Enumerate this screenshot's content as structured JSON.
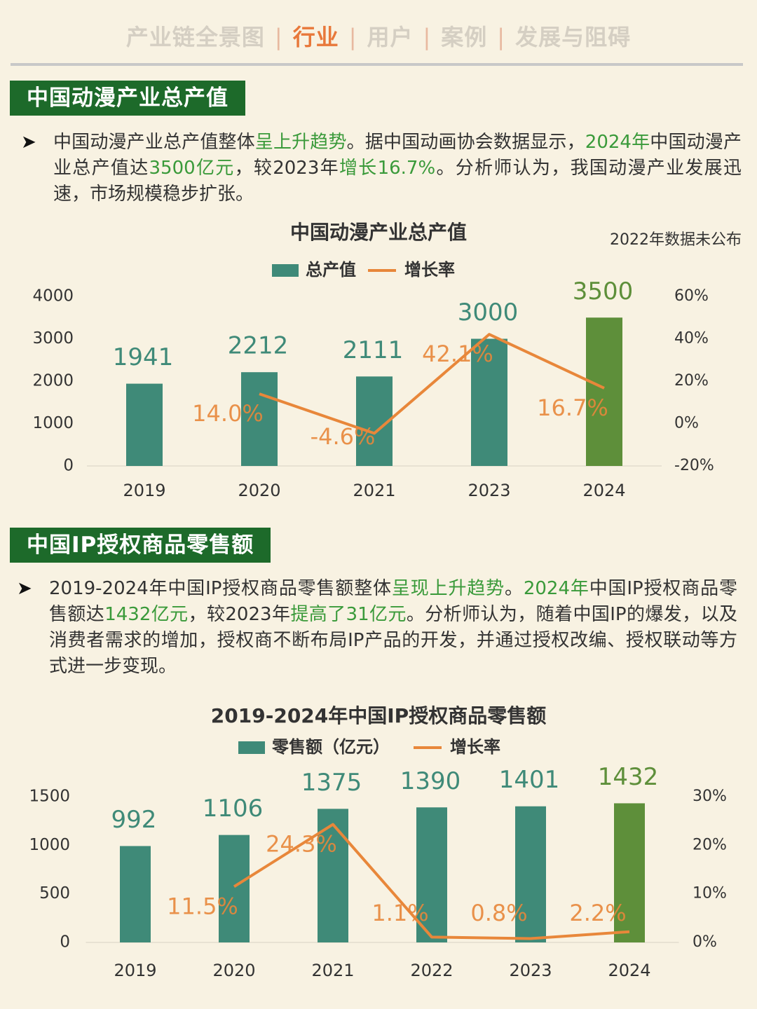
{
  "nav": [
    "产业链全景图",
    "行业",
    "用户",
    "案例",
    "发展与阻碍"
  ],
  "nav_active": 1,
  "sections": [
    {
      "heading": "中国动漫产业总产值",
      "text": [
        {
          "text": "中国动漫产业总产值整体",
          "highlight": false
        },
        {
          "text": "呈上升趋势",
          "highlight": true
        },
        {
          "text": "。据中国动画协会数据显示，",
          "highlight": false
        },
        {
          "text": "2024年",
          "highlight": true
        },
        {
          "text": "中国动漫产业总产值达",
          "highlight": false
        },
        {
          "text": "3500亿元",
          "highlight": true
        },
        {
          "text": "，较2023年",
          "highlight": false
        },
        {
          "text": "增长16.7%",
          "highlight": true
        },
        {
          "text": "。分析师认为，我国动漫产业发展迅速，市场规模稳步扩张。",
          "highlight": false
        }
      ]
    },
    {
      "heading": "中国IP授权商品零售额",
      "text": [
        {
          "text": "2019-2024年中国IP授权商品零售额整体",
          "highlight": false
        },
        {
          "text": "呈现上升趋势",
          "highlight": true
        },
        {
          "text": "。",
          "highlight": false
        },
        {
          "text": "2024年",
          "highlight": true
        },
        {
          "text": "中国IP授权商品零售额达",
          "highlight": false
        },
        {
          "text": "1432亿元",
          "highlight": true
        },
        {
          "text": "，较2023年",
          "highlight": false
        },
        {
          "text": "提高了31亿元",
          "highlight": true
        },
        {
          "text": "。分析师认为，随着中国IP的爆发，以及消费者需求的增加，授权商不断布局IP产品的开发，并通过授权改编、授权联动等方式进一步变现。",
          "highlight": false
        }
      ]
    }
  ],
  "chart_data": [
    {
      "type": "bar",
      "title": "中国动漫产业总产值",
      "note": "2022年数据未公布",
      "categories": [
        "2019",
        "2020",
        "2021",
        "2023",
        "2024"
      ],
      "series": [
        {
          "name": "总产值",
          "type": "bar",
          "color": "#3f8a78",
          "colors": [
            "#3f8a78",
            "#3f8a78",
            "#3f8a78",
            "#3f8a78",
            "#5e8f3a"
          ],
          "values": [
            1941,
            2212,
            2111,
            3000,
            3500
          ]
        },
        {
          "name": "增长率",
          "type": "line",
          "axis": "y2",
          "color": "#e8873a",
          "values": [
            null,
            14.0,
            -4.6,
            42.1,
            16.7
          ],
          "value_labels": [
            null,
            "14.0%",
            "-4.6%",
            "42.1%",
            "16.7%"
          ]
        }
      ],
      "ylim": [
        0,
        4000
      ],
      "yticks": [
        0,
        1000,
        2000,
        3000,
        4000
      ],
      "y2lim": [
        -20,
        60
      ],
      "y2ticks": [
        {
          "value": -20,
          "label": "-20%"
        },
        {
          "value": 0,
          "label": "0%"
        },
        {
          "value": 20,
          "label": "20%"
        },
        {
          "value": 40,
          "label": "40%"
        },
        {
          "value": 60,
          "label": "60%"
        }
      ]
    },
    {
      "type": "bar",
      "title": "2019-2024年中国IP授权商品零售额",
      "categories": [
        "2019",
        "2020",
        "2021",
        "2022",
        "2023",
        "2024"
      ],
      "series": [
        {
          "name": "零售额（亿元）",
          "type": "bar",
          "color": "#3f8a78",
          "colors": [
            "#3f8a78",
            "#3f8a78",
            "#3f8a78",
            "#3f8a78",
            "#3f8a78",
            "#5e8f3a"
          ],
          "values": [
            992,
            1106,
            1375,
            1390,
            1401,
            1432
          ]
        },
        {
          "name": "增长率",
          "type": "line",
          "axis": "y2",
          "color": "#e8873a",
          "values": [
            null,
            11.5,
            24.3,
            1.1,
            0.8,
            2.2
          ],
          "value_labels": [
            null,
            "11.5%",
            "24.3%",
            "1.1%",
            "0.8%",
            "2.2%"
          ]
        }
      ],
      "ylim": [
        0,
        1500
      ],
      "yticks": [
        0,
        500,
        1000,
        1500
      ],
      "y2lim": [
        0,
        30
      ],
      "y2ticks": [
        {
          "value": 0,
          "label": "0%"
        },
        {
          "value": 10,
          "label": "10%"
        },
        {
          "value": 20,
          "label": "20%"
        },
        {
          "value": 30,
          "label": "30%"
        }
      ]
    }
  ]
}
